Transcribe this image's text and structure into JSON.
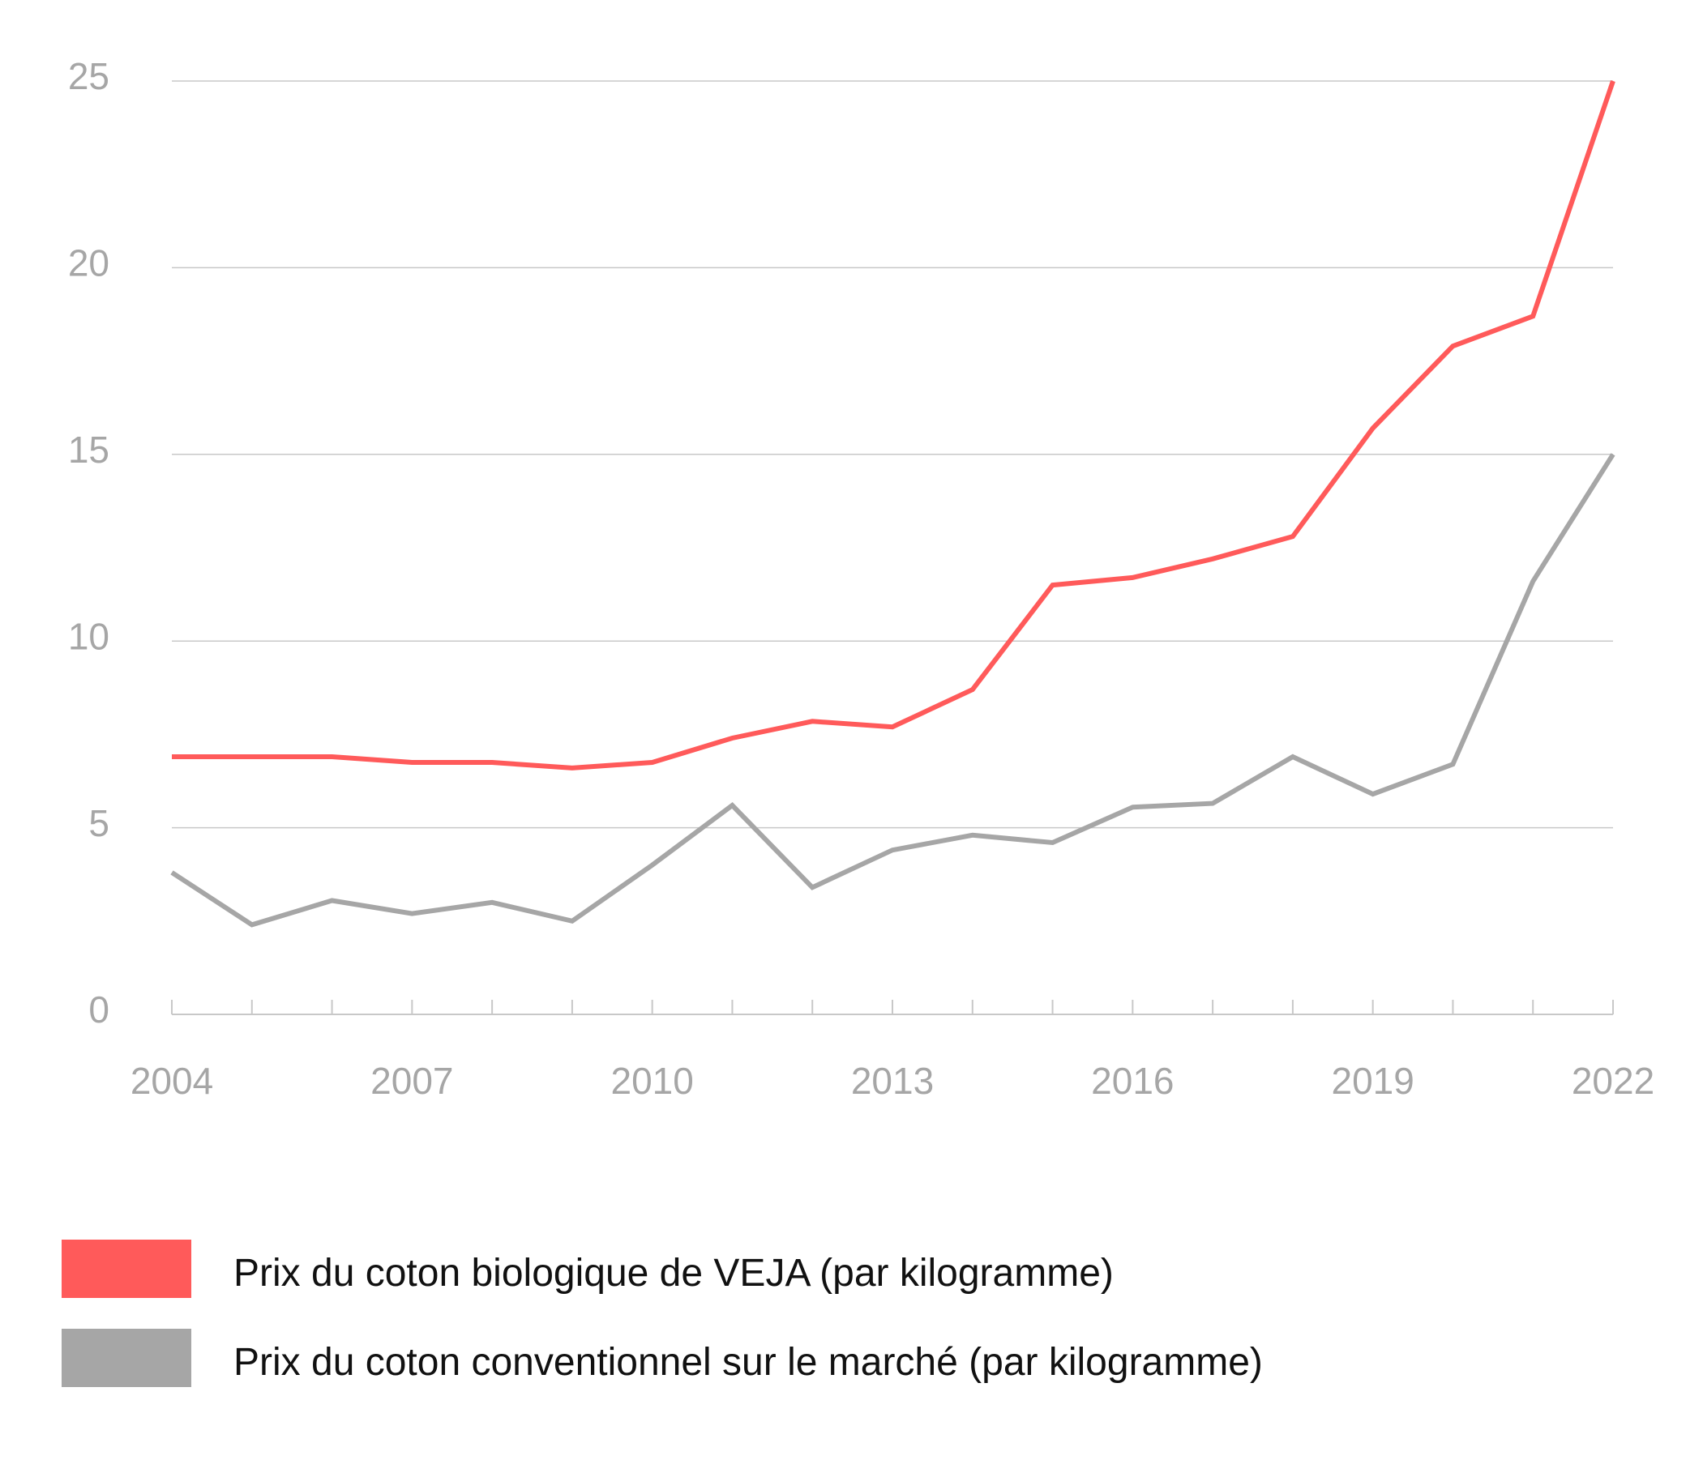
{
  "chart_data": {
    "type": "line",
    "title": "",
    "xlabel": "",
    "ylabel": "",
    "x": [
      2004,
      2005,
      2006,
      2007,
      2008,
      2009,
      2010,
      2011,
      2012,
      2013,
      2014,
      2015,
      2016,
      2017,
      2018,
      2019,
      2020,
      2021,
      2022
    ],
    "x_tick_labels": [
      "2004",
      "2007",
      "2010",
      "2013",
      "2016",
      "2019",
      "2022"
    ],
    "y_tick_labels": [
      "0",
      "5",
      "10",
      "15",
      "20",
      "25"
    ],
    "ylim": [
      0,
      25
    ],
    "xlim": [
      2004,
      2022
    ],
    "grid": true,
    "legend_position": "bottom",
    "series": [
      {
        "name": "Prix du coton biologique de VEJA (par kilogramme)",
        "color": "#ff5a5a",
        "values": [
          6.9,
          6.9,
          6.9,
          6.75,
          6.75,
          6.6,
          6.75,
          7.4,
          7.85,
          7.7,
          8.7,
          11.5,
          11.7,
          12.2,
          12.8,
          15.7,
          17.9,
          18.7,
          25.0
        ]
      },
      {
        "name": "Prix du coton conventionnel sur le marché (par kilogramme)",
        "color": "#a6a6a6",
        "values": [
          3.8,
          2.4,
          3.05,
          2.7,
          3.0,
          2.5,
          4.0,
          5.6,
          3.4,
          4.4,
          4.8,
          4.6,
          5.55,
          5.65,
          6.9,
          5.9,
          6.7,
          11.6,
          15.0
        ]
      }
    ]
  }
}
